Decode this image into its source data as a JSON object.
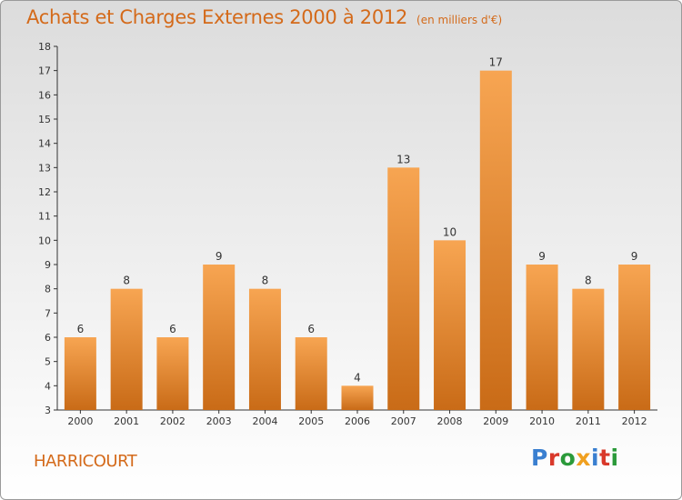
{
  "page": {
    "title": "Achats et Charges Externes 2000 à 2012",
    "unit": "(en milliers d'€)",
    "town": "HARRICOURT",
    "logo_text": "Proxiti",
    "logo_colors": [
      "#3a7fd0",
      "#d9392b",
      "#2b9a3a",
      "#f0a020",
      "#3a7fd0",
      "#d9392b",
      "#2b9a3a"
    ]
  },
  "chart_data": {
    "type": "bar",
    "title": "Achats et Charges Externes 2000 à 2012",
    "subtitle": "(en milliers d'€)",
    "categories": [
      "2000",
      "2001",
      "2002",
      "2003",
      "2004",
      "2005",
      "2006",
      "2007",
      "2008",
      "2009",
      "2010",
      "2011",
      "2012"
    ],
    "values": [
      6,
      8,
      6,
      9,
      8,
      6,
      4,
      13,
      10,
      17,
      9,
      8,
      9
    ],
    "ylim": [
      3,
      18
    ],
    "yticks": [
      3,
      4,
      5,
      6,
      7,
      8,
      9,
      10,
      11,
      12,
      13,
      14,
      15,
      16,
      17,
      18
    ],
    "grid": false,
    "bar_color_top": "#f7a552",
    "bar_color_bottom": "#c96b17",
    "axis_color": "#333333"
  }
}
